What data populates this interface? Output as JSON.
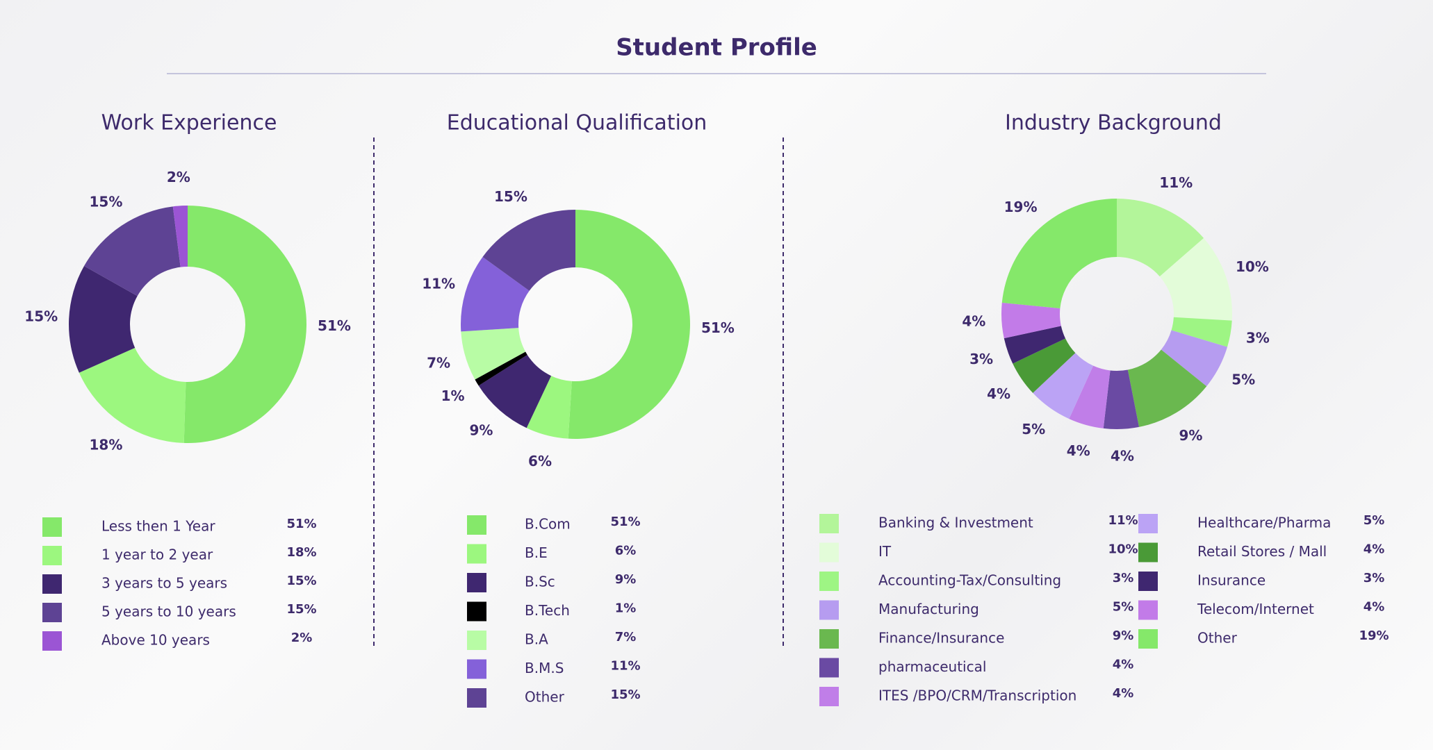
{
  "title": "Student Profile",
  "chart_data": [
    {
      "type": "pie",
      "title": "Work Experience",
      "categories": [
        "Less then 1 Year",
        "1 year to 2 year",
        "3 years to 5 years",
        "5 years to 10 years",
        "Above 10 years"
      ],
      "values": [
        51,
        18,
        15,
        15,
        2
      ],
      "value_labels": [
        "51%",
        "18%",
        "15%",
        "15%",
        "2%"
      ],
      "colors": [
        "#85e86a",
        "#9cf77f",
        "#3f2770",
        "#5e4394",
        "#9b55d4"
      ]
    },
    {
      "type": "pie",
      "title": "Educational Qualification",
      "categories": [
        "B.Com",
        "B.E",
        "B.Sc",
        "B.Tech",
        "B.A",
        "B.M.S",
        "Other"
      ],
      "values": [
        51,
        6,
        9,
        1,
        7,
        11,
        15
      ],
      "value_labels": [
        "51%",
        "6%",
        "9%",
        "1%",
        "7%",
        "11%",
        "15%"
      ],
      "colors": [
        "#85e86a",
        "#9cf77f",
        "#3f2770",
        "#000000",
        "#b8fca5",
        "#8461d9",
        "#5e4394"
      ]
    },
    {
      "type": "pie",
      "title": "Industry Background",
      "categories": [
        "Banking & Investment",
        "IT",
        "Accounting-Tax/Consulting",
        "Manufacturing",
        "Finance/Insurance",
        "pharmaceutical",
        "ITES /BPO/CRM/Transcription",
        "Healthcare/Pharma",
        "Retail Stores / Mall",
        "Insurance",
        "Telecom/Internet",
        "Other"
      ],
      "values": [
        11,
        10,
        3,
        5,
        9,
        4,
        4,
        5,
        4,
        3,
        4,
        19
      ],
      "value_labels": [
        "11%",
        "10%",
        "3%",
        "5%",
        "9%",
        "4%",
        "4%",
        "5%",
        "4%",
        "3%",
        "4%",
        "19%"
      ],
      "colors": [
        "#b3f59a",
        "#e3fcd9",
        "#9ef584",
        "#b69cf0",
        "#6ab84f",
        "#6a4aa3",
        "#c07ee8",
        "#bba3f5",
        "#4a9a37",
        "#3f2770",
        "#c27be8",
        "#85e86a"
      ]
    }
  ]
}
